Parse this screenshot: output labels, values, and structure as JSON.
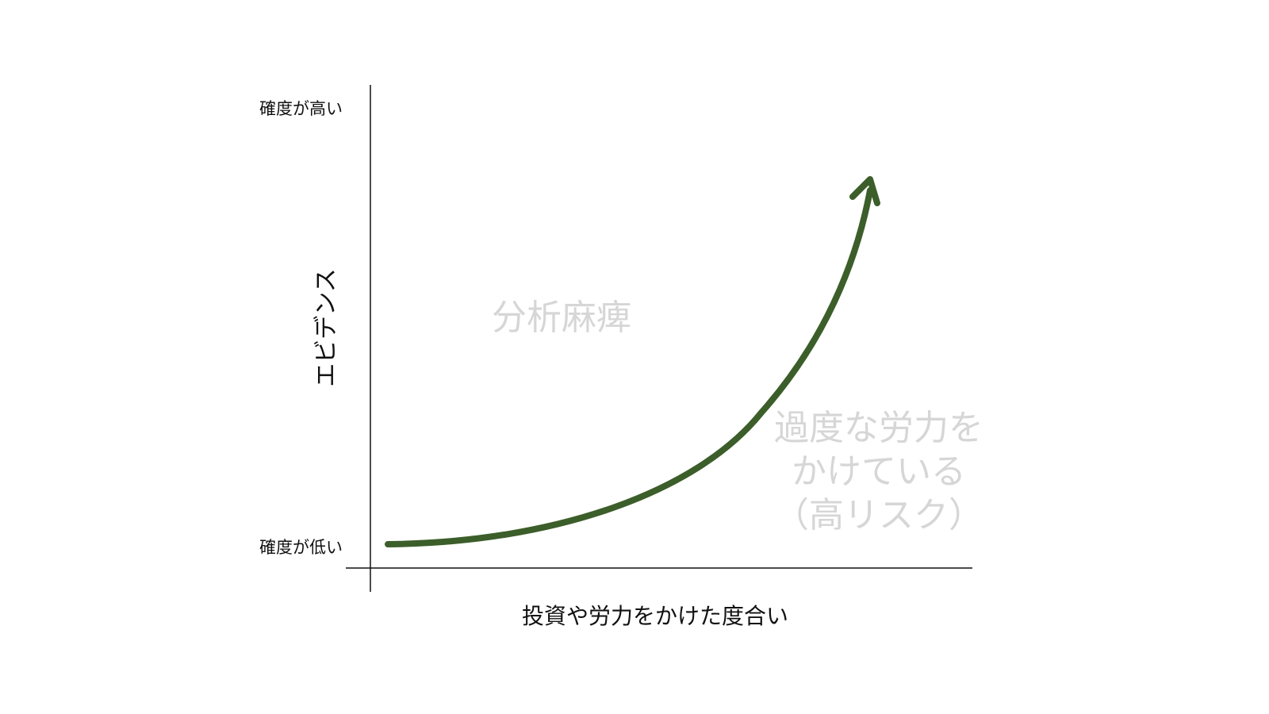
{
  "diagram": {
    "y_axis_title": "エビデンス",
    "y_high_label": "確度が高い",
    "y_low_label": "確度が低い",
    "x_axis_title": "投資や労力をかけた度合い",
    "region_paralysis": "分析麻痺",
    "region_overeffort": {
      "line1": "過度な労力を",
      "line2": "かけている",
      "line3": "（高リスク）"
    },
    "curve_color": "#3c5e2a",
    "axis_color": "#111111",
    "region_text_color": "#d6d6d6"
  }
}
